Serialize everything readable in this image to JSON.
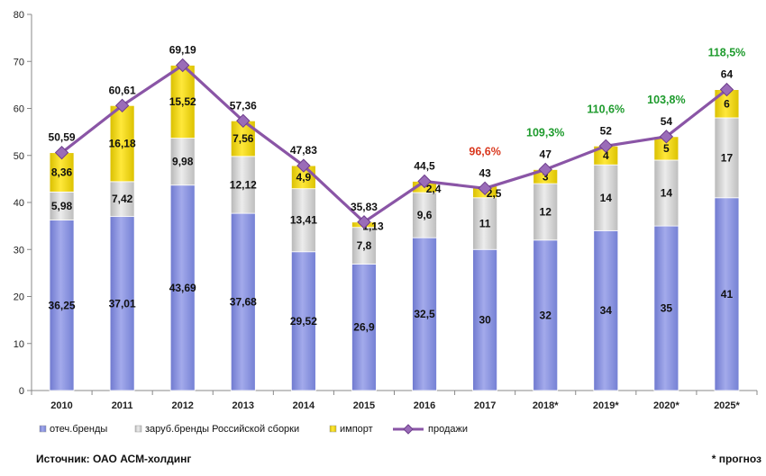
{
  "chart_data": {
    "type": "bar",
    "stacked": true,
    "categories": [
      "2010",
      "2011",
      "2012",
      "2013",
      "2014",
      "2015",
      "2016",
      "2017",
      "2018*",
      "2019*",
      "2020*",
      "2025*"
    ],
    "series": [
      {
        "name": "отеч.бренды",
        "color": "#8b94dd",
        "values": [
          36.25,
          37.01,
          43.69,
          37.68,
          29.52,
          26.9,
          32.5,
          30,
          32,
          34,
          35,
          41
        ],
        "labels": [
          "36,25",
          "37,01",
          "43,69",
          "37,68",
          "29,52",
          "26,9",
          "32,5",
          "30",
          "32",
          "34",
          "35",
          "41"
        ]
      },
      {
        "name": "заруб.бренды Российской сборки",
        "color": "#d4d4d4",
        "values": [
          5.98,
          7.42,
          9.98,
          12.12,
          13.41,
          7.8,
          9.6,
          11,
          12,
          14,
          14,
          17
        ],
        "labels": [
          "5,98",
          "7,42",
          "9,98",
          "12,12",
          "13,41",
          "7,8",
          "9,6",
          "11",
          "12",
          "14",
          "14",
          "17"
        ]
      },
      {
        "name": "импорт",
        "color": "#f1d400",
        "values": [
          8.36,
          16.18,
          15.52,
          7.56,
          4.9,
          1.13,
          2.4,
          2.5,
          3,
          4,
          5,
          6
        ],
        "labels": [
          "8,36",
          "16,18",
          "15,52",
          "7,56",
          "4,9",
          "1,13",
          "2,4",
          "2,5",
          "3",
          "4",
          "5",
          "6"
        ]
      }
    ],
    "line": {
      "name": "продажи",
      "color": "#8a55a6",
      "values": [
        50.59,
        60.61,
        69.19,
        57.36,
        47.83,
        35.83,
        44.5,
        43,
        47,
        52,
        54,
        64
      ],
      "labels": [
        "50,59",
        "60,61",
        "69,19",
        "57,36",
        "47,83",
        "35,83",
        "44,5",
        "43",
        "47",
        "52",
        "54",
        "64"
      ]
    },
    "annotations": [
      {
        "index": 7,
        "text": "96,6%",
        "color": "#d9381e"
      },
      {
        "index": 8,
        "text": "109,3%",
        "color": "#1e9b2d"
      },
      {
        "index": 9,
        "text": "110,6%",
        "color": "#1e9b2d"
      },
      {
        "index": 10,
        "text": "103,8%",
        "color": "#1e9b2d"
      },
      {
        "index": 11,
        "text": "118,5%",
        "color": "#1e9b2d"
      }
    ],
    "ylim": [
      0,
      80
    ],
    "yticks": [
      "0",
      "10",
      "20",
      "30",
      "40",
      "50",
      "60",
      "70",
      "80"
    ],
    "grid": false,
    "legend_position": "bottom-left"
  },
  "footer": {
    "source": "Источник: ОАО АСМ-холдинг",
    "note": "* прогноз"
  }
}
